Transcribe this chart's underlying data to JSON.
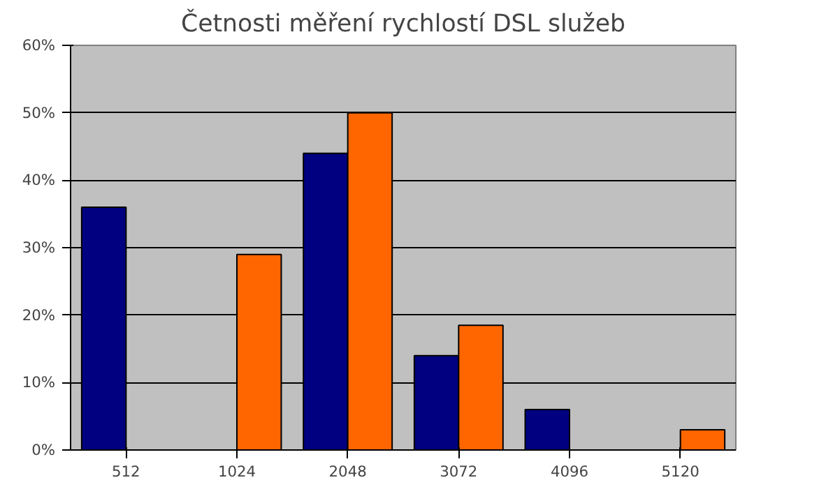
{
  "chart_data": {
    "type": "bar",
    "title": "Četnosti měření rychlostí DSL služeb",
    "categories": [
      "512",
      "1024",
      "2048",
      "3072",
      "4096",
      "5120"
    ],
    "series": [
      {
        "color": "#000080",
        "values": [
          36,
          null,
          44,
          14,
          6,
          null
        ]
      },
      {
        "color": "#ff6600",
        "values": [
          null,
          29,
          50,
          18.5,
          null,
          3
        ]
      }
    ],
    "ylim": [
      0,
      60
    ],
    "yticks": [
      {
        "value": 0,
        "label": "0%"
      },
      {
        "value": 10,
        "label": "10%"
      },
      {
        "value": 20,
        "label": "20%"
      },
      {
        "value": 30,
        "label": "30%"
      },
      {
        "value": 40,
        "label": "40%"
      },
      {
        "value": 50,
        "label": "50%"
      },
      {
        "value": 60,
        "label": "60%"
      }
    ],
    "grid": "y",
    "legend": false
  }
}
